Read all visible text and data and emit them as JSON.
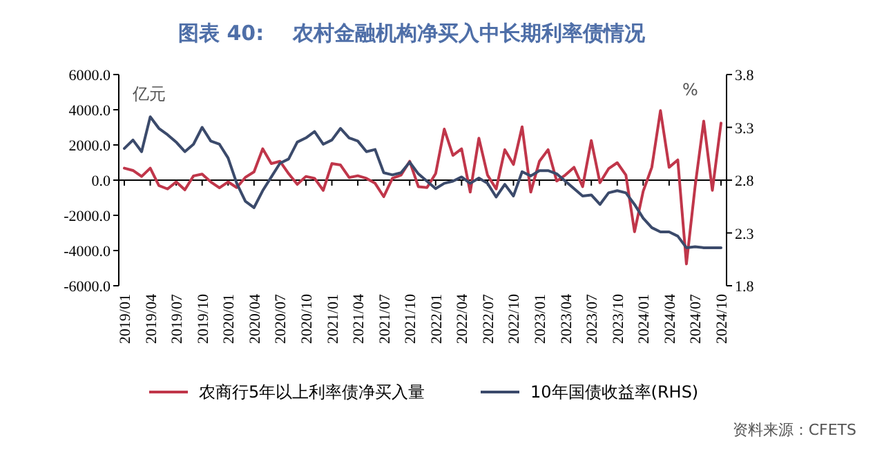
{
  "chart_data": {
    "type": "line",
    "title": "图表 40:    农村金融机构净买入中长期利率债情况",
    "ylabel": "亿元",
    "y2label": "%",
    "categories": [
      "2019/01",
      null,
      null,
      "2019/04",
      null,
      null,
      "2019/07",
      null,
      null,
      "2019/10",
      null,
      null,
      "2020/01",
      null,
      null,
      "2020/04",
      null,
      null,
      "2020/07",
      null,
      null,
      "2020/10",
      null,
      null,
      "2021/01",
      null,
      null,
      "2021/04",
      null,
      null,
      "2021/07",
      null,
      null,
      "2021/10",
      null,
      null,
      "2022/01",
      null,
      null,
      "2022/04",
      null,
      null,
      "2022/07",
      null,
      null,
      "2022/10",
      null,
      null,
      "2023/01",
      null,
      null,
      "2023/04",
      null,
      null,
      "2023/07",
      null,
      null,
      "2023/10",
      null,
      null,
      "2024/01",
      null,
      null,
      "2024/04",
      null,
      null,
      "2024/07",
      null,
      null,
      "2024/10"
    ],
    "series": [
      {
        "name": "农商行5年以上利率债净买入量",
        "color": "#c0364a",
        "axis": "y",
        "values": [
          680,
          550,
          210,
          680,
          -310,
          -500,
          -100,
          -550,
          240,
          340,
          -100,
          -440,
          -100,
          -420,
          160,
          470,
          1780,
          940,
          1070,
          370,
          -240,
          210,
          100,
          -580,
          940,
          860,
          150,
          250,
          100,
          -180,
          -940,
          100,
          290,
          1070,
          -370,
          -420,
          370,
          2900,
          1410,
          1780,
          -680,
          2380,
          290,
          -500,
          1730,
          890,
          3030,
          -680,
          1070,
          1730,
          -50,
          290,
          730,
          -370,
          2250,
          -150,
          650,
          990,
          290,
          -2930,
          -630,
          730,
          3950,
          730,
          1150,
          -4760,
          -370,
          3350,
          -580,
          3240
        ]
      },
      {
        "name": "10年国债收益率(RHS)",
        "color": "#3b4a6b",
        "axis": "y2",
        "values": [
          3.1,
          3.18,
          3.07,
          3.4,
          3.29,
          3.23,
          3.16,
          3.07,
          3.14,
          3.3,
          3.17,
          3.14,
          3.01,
          2.77,
          2.6,
          2.54,
          2.7,
          2.83,
          2.96,
          3.0,
          3.16,
          3.2,
          3.26,
          3.14,
          3.18,
          3.29,
          3.2,
          3.17,
          3.07,
          3.09,
          2.87,
          2.85,
          2.87,
          2.97,
          2.86,
          2.79,
          2.72,
          2.77,
          2.79,
          2.83,
          2.77,
          2.82,
          2.77,
          2.64,
          2.76,
          2.65,
          2.88,
          2.84,
          2.89,
          2.89,
          2.86,
          2.79,
          2.72,
          2.65,
          2.66,
          2.57,
          2.68,
          2.7,
          2.68,
          2.57,
          2.44,
          2.35,
          2.31,
          2.31,
          2.27,
          2.16,
          2.17,
          2.16,
          2.16,
          2.16
        ]
      }
    ],
    "ylim": [
      -6000,
      6000
    ],
    "yticks": [
      {
        "value": -6000,
        "label": "-6000.0"
      },
      {
        "value": -4000,
        "label": "-4000.0"
      },
      {
        "value": -2000,
        "label": "-2000.0"
      },
      {
        "value": 0,
        "label": "0.0"
      },
      {
        "value": 2000,
        "label": "2000.0"
      },
      {
        "value": 4000,
        "label": "4000.0"
      },
      {
        "value": 6000,
        "label": "6000.0"
      }
    ],
    "y2lim": [
      1.8,
      3.8
    ],
    "y2ticks": [
      1.8,
      2.3,
      2.8,
      3.3,
      3.8
    ],
    "legend": "bottom",
    "annotations": [
      "资料来源：CFETS"
    ]
  }
}
